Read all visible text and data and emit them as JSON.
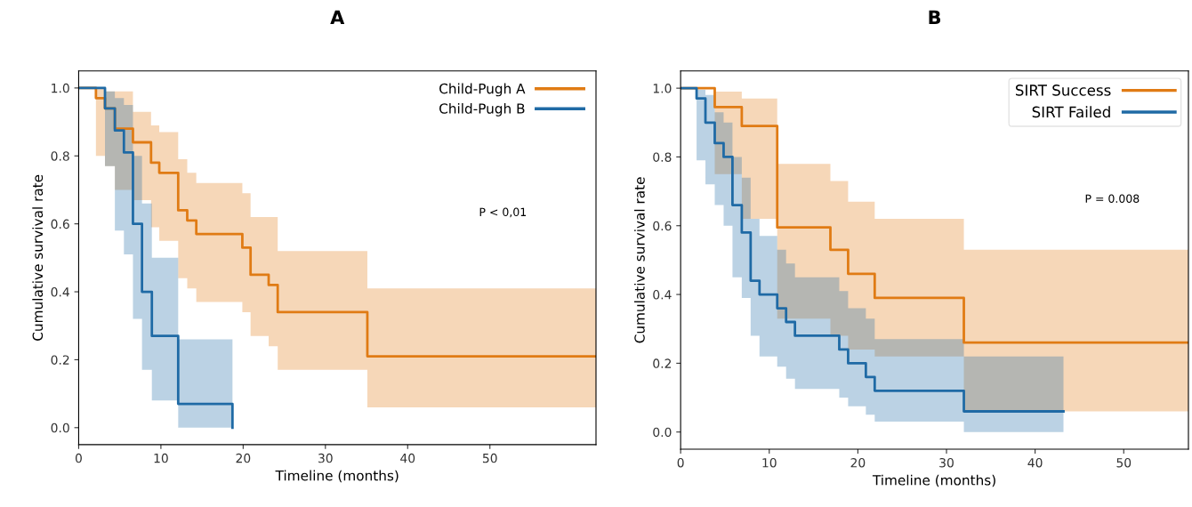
{
  "chart_data": [
    {
      "type": "step",
      "title": "A",
      "xlabel": "Timeline (months)",
      "ylabel": "Cumulative survival rate",
      "annotations": [
        "P < 0,01"
      ],
      "xlim": [
        0,
        62.9
      ],
      "xticks": [
        0,
        10,
        20,
        30,
        40,
        50
      ],
      "ylim": [
        -0.05,
        1.05
      ],
      "yticks": [
        {
          "value": 0,
          "label": "0.0"
        },
        {
          "value": 0.2,
          "label": "0.2"
        },
        {
          "value": 0.4,
          "label": "0.4"
        },
        {
          "value": 0.6,
          "label": "0.6"
        },
        {
          "value": 0.8,
          "label": "0.8"
        },
        {
          "value": 1,
          "label": "1.0"
        }
      ],
      "grid": false,
      "legend": "top right",
      "series": [
        {
          "name": "Child-Pugh A",
          "color": "#e07b14",
          "x": [
            0,
            2.1,
            3.2,
            4.4,
            6.6,
            8.8,
            9.8,
            12.1,
            13.2,
            14.3,
            19.9,
            20.9,
            23.1,
            24.2,
            35.1,
            62.9
          ],
          "values": [
            1.0,
            0.97,
            0.94,
            0.88,
            0.84,
            0.78,
            0.75,
            0.64,
            0.61,
            0.57,
            0.53,
            0.45,
            0.42,
            0.34,
            0.21,
            0.21
          ],
          "lower": [
            1.0,
            0.8,
            0.77,
            0.7,
            0.67,
            0.59,
            0.55,
            0.44,
            0.41,
            0.37,
            0.34,
            0.27,
            0.24,
            0.17,
            0.06,
            0.06
          ],
          "upper": [
            1.0,
            1.0,
            0.99,
            0.99,
            0.93,
            0.89,
            0.87,
            0.79,
            0.75,
            0.72,
            0.69,
            0.62,
            0.62,
            0.52,
            0.41,
            0.41
          ]
        },
        {
          "name": "Child-Pugh B",
          "color": "#1f6aa5",
          "x": [
            0,
            3.2,
            4.4,
            5.5,
            6.6,
            7.7,
            8.9,
            12.1,
            18.7
          ],
          "values": [
            1.0,
            0.94,
            0.875,
            0.81,
            0.6,
            0.4,
            0.27,
            0.07,
            0.0
          ],
          "lower": [
            1.0,
            0.77,
            0.58,
            0.51,
            0.32,
            0.17,
            0.08,
            0.0,
            0.0
          ],
          "upper": [
            1.0,
            0.99,
            0.97,
            0.95,
            0.8,
            0.66,
            0.5,
            0.26,
            0.26
          ]
        }
      ]
    },
    {
      "type": "step",
      "title": "B",
      "xlabel": "Timeline (months)",
      "ylabel": "Cumulative survival rate",
      "annotations": [
        "P = 0.008"
      ],
      "xlim": [
        0,
        57.3
      ],
      "xticks": [
        0,
        10,
        20,
        30,
        40,
        50
      ],
      "ylim": [
        -0.05,
        1.05
      ],
      "yticks": [
        {
          "value": 0,
          "label": "0.0"
        },
        {
          "value": 0.2,
          "label": "0.2"
        },
        {
          "value": 0.4,
          "label": "0.4"
        },
        {
          "value": 0.6,
          "label": "0.6"
        },
        {
          "value": 0.8,
          "label": "0.8"
        },
        {
          "value": 1,
          "label": "1.0"
        }
      ],
      "grid": false,
      "legend": "top right",
      "series": [
        {
          "name": "SIRT Success",
          "color": "#e07b14",
          "x": [
            0,
            3.85,
            6.9,
            10.9,
            16.9,
            18.9,
            21.9,
            31.96,
            57.3
          ],
          "values": [
            1.0,
            0.945,
            0.89,
            0.595,
            0.53,
            0.46,
            0.39,
            0.26,
            0.26
          ],
          "lower": [
            1.0,
            0.75,
            0.62,
            0.33,
            0.28,
            0.24,
            0.22,
            0.06,
            0.06
          ],
          "upper": [
            1.0,
            0.99,
            0.97,
            0.78,
            0.73,
            0.67,
            0.62,
            0.53,
            0.53
          ]
        },
        {
          "name": "SIRT Failed",
          "color": "#1f6aa5",
          "x": [
            0,
            1.8,
            2.8,
            3.85,
            4.85,
            5.85,
            6.9,
            7.9,
            8.9,
            10.9,
            11.9,
            12.9,
            17.9,
            18.9,
            20.9,
            21.9,
            31.96,
            43.2
          ],
          "values": [
            1.0,
            0.97,
            0.9,
            0.84,
            0.8,
            0.66,
            0.58,
            0.44,
            0.4,
            0.36,
            0.32,
            0.28,
            0.24,
            0.2,
            0.16,
            0.12,
            0.06,
            0.06
          ],
          "lower": [
            1.0,
            0.79,
            0.72,
            0.66,
            0.6,
            0.45,
            0.39,
            0.28,
            0.22,
            0.19,
            0.155,
            0.125,
            0.1,
            0.075,
            0.05,
            0.03,
            0.0,
            0.0
          ],
          "upper": [
            1.0,
            0.995,
            0.98,
            0.93,
            0.9,
            0.8,
            0.74,
            0.62,
            0.57,
            0.53,
            0.49,
            0.45,
            0.41,
            0.36,
            0.33,
            0.27,
            0.22,
            0.22
          ]
        }
      ]
    }
  ]
}
